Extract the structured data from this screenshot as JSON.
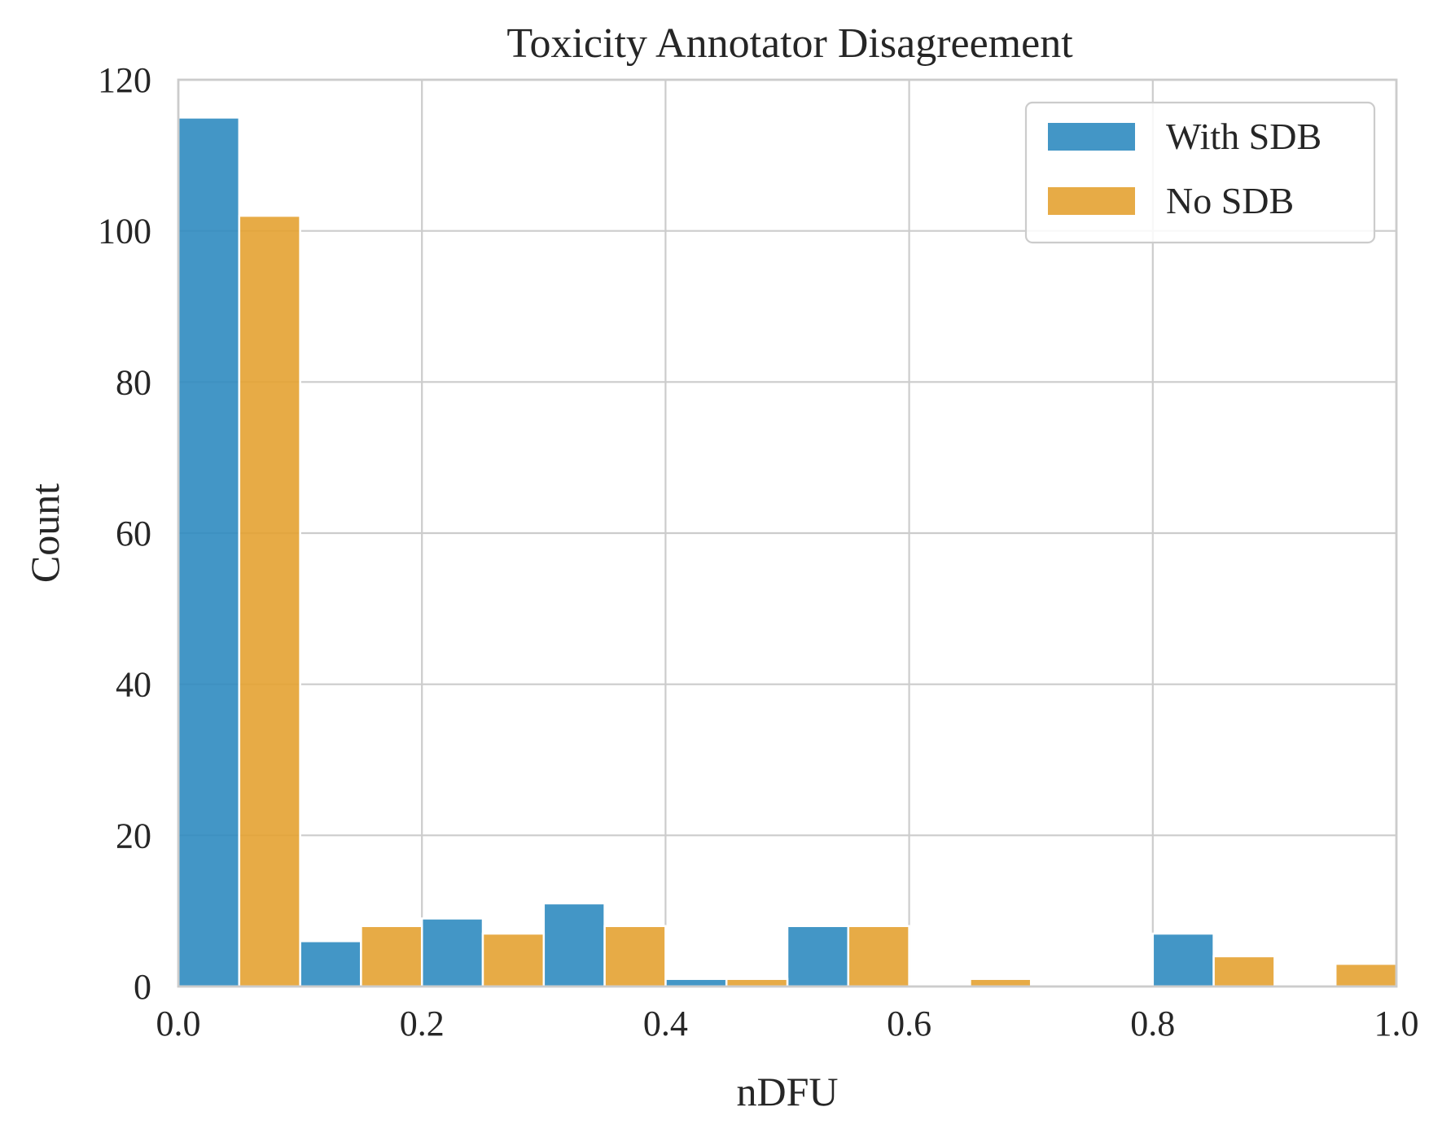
{
  "chart_data": {
    "type": "bar",
    "subtype": "histogram",
    "title": "Toxicity Annotator Disagreement",
    "xlabel": "nDFU",
    "ylabel": "Count",
    "xlim": [
      0,
      1
    ],
    "ylim": [
      0,
      120
    ],
    "xticks": [
      "0.0",
      "0.2",
      "0.4",
      "0.6",
      "0.8",
      "1.0"
    ],
    "yticks": [
      "0",
      "20",
      "40",
      "60",
      "80",
      "100",
      "120"
    ],
    "grid": true,
    "legend_position": "top-right",
    "bin_edges": [
      0.0,
      0.1,
      0.2,
      0.3,
      0.4,
      0.5,
      0.6,
      0.7,
      0.8,
      0.9,
      1.0
    ],
    "series": [
      {
        "name": "With SDB",
        "color": "#2f8bc0",
        "values": [
          115,
          6,
          9,
          11,
          1,
          8,
          0,
          0,
          7,
          0
        ]
      },
      {
        "name": "No SDB",
        "color": "#e4a232",
        "values": [
          102,
          8,
          7,
          8,
          1,
          8,
          1,
          0,
          4,
          3
        ]
      }
    ]
  }
}
